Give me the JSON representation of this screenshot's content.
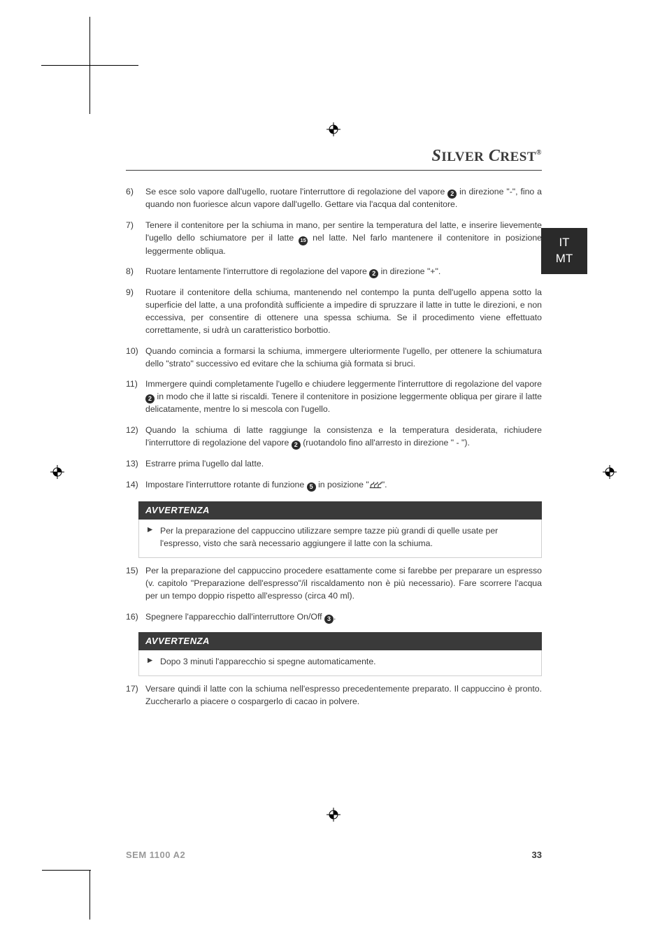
{
  "brand": "SILVERCREST",
  "brand_trademark": "®",
  "side_tab": {
    "line1": "IT",
    "line2": "MT"
  },
  "colors": {
    "text": "#3a3a3a",
    "tab_bg": "#2a2a2a",
    "tab_text": "#ffffff",
    "notice_border": "#cfcfcf",
    "footer_muted": "#999999"
  },
  "icons": {
    "circle_2": "2",
    "circle_3": "3",
    "circle_5": "5",
    "circle_15": "⓯"
  },
  "items": [
    {
      "n": "6)",
      "before": "Se esce solo vapore dall'ugello, ruotare l'interruttore di regolazione del vapore ",
      "c": "2",
      "after": " in direzione \"-\", fino a quando non fuoriesce alcun vapore dall'ugello. Gettare via l'acqua dal contenitore."
    },
    {
      "n": "7)",
      "before": "Tenere il contenitore per la schiuma in mano, per sentire la temperatura del latte, e inserire lievemente l'ugello dello schiumatore per il latte ",
      "c": "15",
      "after": " nel latte. Nel farlo mantenere il contenitore in posizione leggermente obliqua."
    },
    {
      "n": "8)",
      "before": "Ruotare lentamente l'interruttore di regolazione del vapore ",
      "c": "2",
      "after": " in direzione \"+\"."
    },
    {
      "n": "9)",
      "before": "Ruotare il contenitore della schiuma, mantenendo nel contempo la punta dell'ugello appena sotto la superficie del latte, a una profondità sufficiente a impedire di spruzzare il latte in tutte le direzioni, e non eccessiva, per consentire di ottenere una spessa schiuma. Se il procedimento viene effettuato correttamente, si udrà un caratteristico borbottio.",
      "c": null,
      "after": ""
    },
    {
      "n": "10)",
      "before": "Quando comincia a formarsi la schiuma, immergere ulteriormente l'ugello, per ottenere la schiumatura dello \"strato\" successivo ed evitare che la schiuma già formata si bruci.",
      "c": null,
      "after": ""
    },
    {
      "n": "11)",
      "before": "Immergere quindi completamente l'ugello e chiudere leggermente l'interruttore di regolazione del vapore ",
      "c": "2",
      "after": " in modo che il latte si riscaldi. Tenere il contenitore in posizione leggermente obliqua per girare il latte delicatamente, mentre lo si mescola con l'ugello."
    },
    {
      "n": "12)",
      "before": "Quando la schiuma di latte raggiunge la consistenza e la temperatura desiderata, richiudere l'interruttore di regolazione del vapore ",
      "c": "2",
      "after": " (ruotandolo fino all'arresto in direzione \" - \")."
    },
    {
      "n": "13)",
      "before": "Estrarre prima l'ugello dal latte.",
      "c": null,
      "after": ""
    },
    {
      "n": "14)",
      "before": "Impostare l'interruttore rotante di funzione ",
      "c": "5",
      "after": " in posizione \"",
      "heat": true,
      "after2": "\"."
    }
  ],
  "notice1": {
    "title": "AVVERTENZA",
    "text": "Per la preparazione del cappuccino utilizzare sempre tazze più grandi di quelle usate per l'espresso, visto che sarà necessario aggiungere il latte con la schiuma."
  },
  "items2": [
    {
      "n": "15)",
      "before": "Per la preparazione del cappuccino procedere esattamente come si farebbe per preparare un espresso (v. capitolo \"Preparazione dell'espresso\"/il riscaldamento non è più necessario). Fare scorrere l'acqua per un tempo doppio rispetto all'espresso (circa 40 ml).",
      "c": null,
      "after": ""
    },
    {
      "n": "16)",
      "before": "Spegnere l'apparecchio dall'interruttore On/Off ",
      "c": "3",
      "after": "."
    }
  ],
  "notice2": {
    "title": "AVVERTENZA",
    "text": "Dopo 3 minuti l'apparecchio si spegne automaticamente."
  },
  "items3": [
    {
      "n": "17)",
      "before": "Versare quindi il latte con la schiuma nell'espresso precedentemente preparato. Il cappuccino è pronto. Zuccherarlo a piacere o cospargerlo di cacao in polvere.",
      "c": null,
      "after": ""
    }
  ],
  "footer": {
    "model": "SEM 1100 A2",
    "page": "33"
  }
}
